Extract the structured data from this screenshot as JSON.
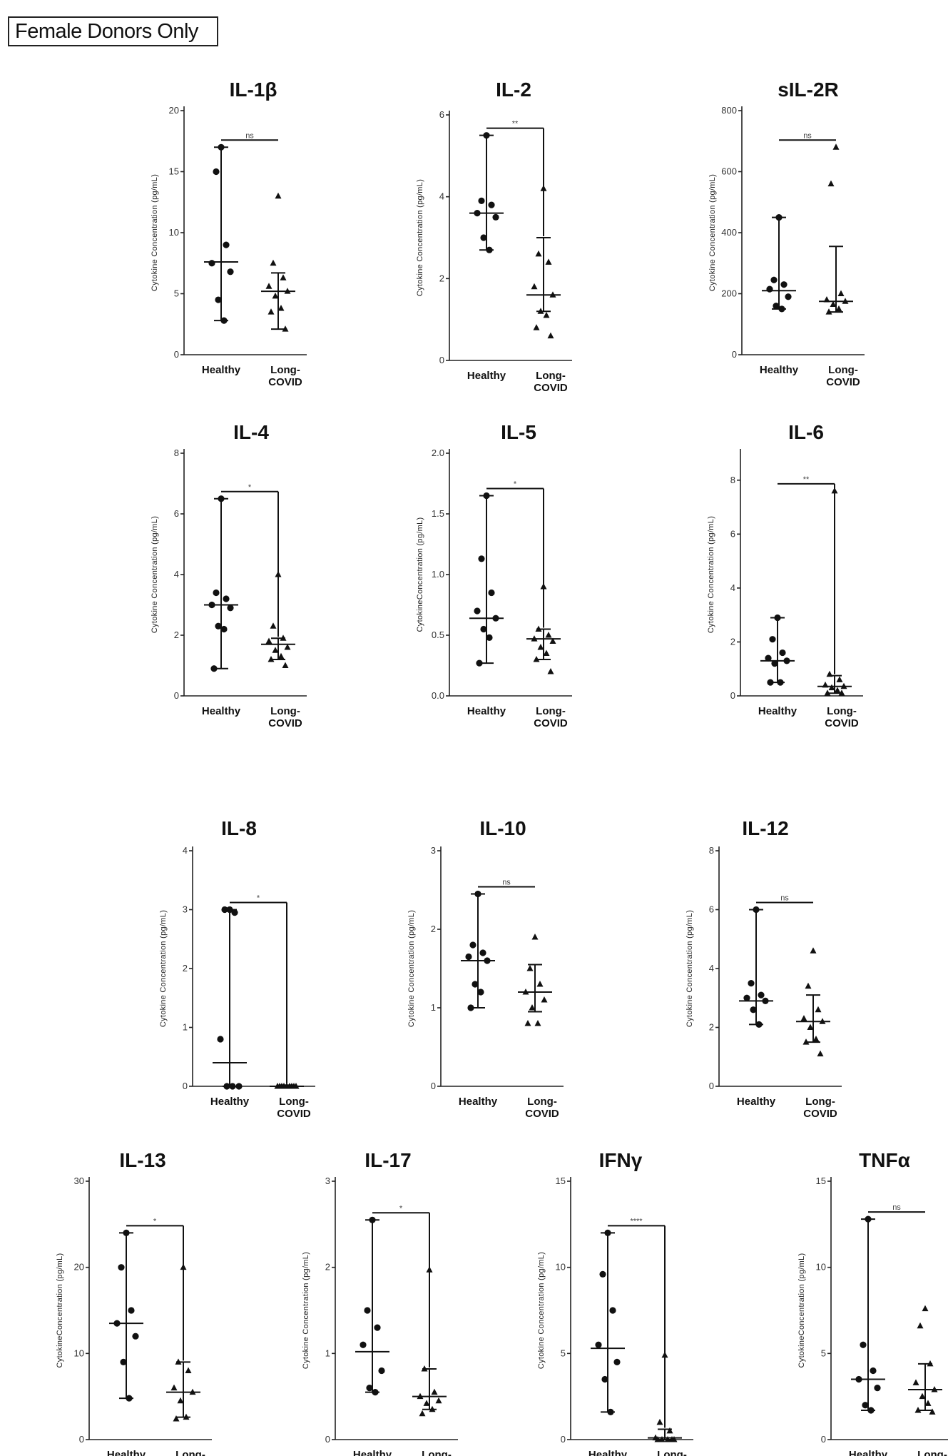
{
  "figure_label": "Female Donors Only",
  "chart_data": [
    {
      "type": "scatter",
      "title": "IL-1β",
      "ylabel": "Cytokine  Concentration  (pg/mL)",
      "ylim": [
        0,
        20
      ],
      "yticks": [
        "0",
        "5",
        "10",
        "15",
        "20"
      ],
      "categories": [
        "Healthy",
        "Long-\nCOVID"
      ],
      "significance": "ns",
      "series": [
        {
          "name": "Healthy",
          "median": 7.6,
          "ci": [
            2.8,
            17
          ],
          "values": [
            17,
            15,
            9,
            7.5,
            6.8,
            4.5,
            2.8
          ]
        },
        {
          "name": "Long-COVID",
          "median": 5.2,
          "ci": [
            2.1,
            6.7
          ],
          "values": [
            13,
            7.5,
            6.3,
            5.6,
            5.2,
            4.8,
            3.8,
            3.5,
            2.1
          ]
        }
      ]
    },
    {
      "type": "scatter",
      "title": "IL-2",
      "ylabel": "Cytokine  Concentration  (pg/mL)",
      "ylim": [
        0,
        6
      ],
      "yticks": [
        "0",
        "2",
        "4",
        "6"
      ],
      "categories": [
        "Healthy",
        "Long-\nCOVID"
      ],
      "significance": "**",
      "series": [
        {
          "name": "Healthy",
          "median": 3.6,
          "ci": [
            2.7,
            5.5
          ],
          "values": [
            5.5,
            3.9,
            3.8,
            3.6,
            3.5,
            3.0,
            2.7
          ]
        },
        {
          "name": "Long-COVID",
          "median": 1.6,
          "ci": [
            1.2,
            3.0
          ],
          "values": [
            4.2,
            2.6,
            2.4,
            1.8,
            1.6,
            1.2,
            1.1,
            0.8,
            0.6
          ]
        }
      ]
    },
    {
      "type": "scatter",
      "title": "sIL-2R",
      "ylabel": "Cytokine  Concentration  (pg/mL)",
      "ylim": [
        0,
        800
      ],
      "yticks": [
        "0",
        "200",
        "400",
        "600",
        "800"
      ],
      "categories": [
        "Healthy",
        "Long-\nCOVID"
      ],
      "significance": "ns",
      "series": [
        {
          "name": "Healthy",
          "median": 210,
          "ci": [
            150,
            450
          ],
          "values": [
            450,
            245,
            230,
            215,
            190,
            160,
            150
          ]
        },
        {
          "name": "Long-COVID",
          "median": 175,
          "ci": [
            140,
            355
          ],
          "values": [
            680,
            560,
            200,
            180,
            175,
            165,
            150,
            140
          ]
        }
      ]
    },
    {
      "type": "scatter",
      "title": "IL-4",
      "ylabel": "Cytokine  Concentration  (pg/mL)",
      "ylim": [
        0,
        8
      ],
      "yticks": [
        "0",
        "2",
        "4",
        "6",
        "8"
      ],
      "categories": [
        "Healthy",
        "Long-\nCOVID"
      ],
      "significance": "*",
      "series": [
        {
          "name": "Healthy",
          "median": 3.0,
          "ci": [
            0.9,
            6.5
          ],
          "values": [
            6.5,
            3.4,
            3.2,
            3.0,
            2.9,
            2.3,
            2.2,
            0.9
          ]
        },
        {
          "name": "Long-COVID",
          "median": 1.7,
          "ci": [
            1.2,
            1.9
          ],
          "values": [
            4.0,
            2.3,
            1.9,
            1.8,
            1.6,
            1.5,
            1.3,
            1.2,
            1.0
          ]
        }
      ]
    },
    {
      "type": "scatter",
      "title": "IL-5",
      "ylabel": "CytokineConcentration  (pg/mL)",
      "ylim": [
        0,
        2.0
      ],
      "yticks": [
        "0.0",
        "0.5",
        "1.0",
        "1.5",
        "2.0"
      ],
      "categories": [
        "Healthy",
        "Long-\nCOVID"
      ],
      "significance": "*",
      "series": [
        {
          "name": "Healthy",
          "median": 0.64,
          "ci": [
            0.27,
            1.65
          ],
          "values": [
            1.65,
            1.13,
            0.85,
            0.7,
            0.64,
            0.55,
            0.48,
            0.27
          ]
        },
        {
          "name": "Long-COVID",
          "median": 0.47,
          "ci": [
            0.3,
            0.55
          ],
          "values": [
            0.9,
            0.55,
            0.5,
            0.47,
            0.45,
            0.4,
            0.35,
            0.3,
            0.2
          ]
        }
      ]
    },
    {
      "type": "scatter",
      "title": "IL-6",
      "ylabel": "Cytokine  Concentration  (pg/mL)",
      "ylim": [
        0,
        9
      ],
      "yticks": [
        "0",
        "2",
        "4",
        "6",
        "8"
      ],
      "categories": [
        "Healthy",
        "Long-\nCOVID"
      ],
      "significance": "**",
      "series": [
        {
          "name": "Healthy",
          "median": 1.3,
          "ci": [
            0.5,
            2.9
          ],
          "values": [
            2.9,
            2.1,
            1.6,
            1.4,
            1.3,
            1.2,
            0.5,
            0.5
          ]
        },
        {
          "name": "Long-COVID",
          "median": 0.35,
          "ci": [
            0.1,
            0.75
          ],
          "values": [
            7.6,
            0.8,
            0.6,
            0.4,
            0.35,
            0.3,
            0.2,
            0.1,
            0.1
          ]
        }
      ]
    },
    {
      "type": "scatter",
      "title": "IL-8",
      "ylabel": "Cytokine  Concentration  (pg/mL)",
      "ylim": [
        0,
        4
      ],
      "yticks": [
        "0",
        "1",
        "2",
        "3",
        "4"
      ],
      "categories": [
        "Healthy",
        "Long-\nCOVID"
      ],
      "significance": "*",
      "series": [
        {
          "name": "Healthy",
          "median": 0.4,
          "ci": [
            0,
            3
          ],
          "values": [
            3.0,
            3.0,
            2.95,
            0.8,
            0,
            0,
            0
          ]
        },
        {
          "name": "Long-COVID",
          "median": 0,
          "ci": [
            0,
            0.02
          ],
          "values": [
            0,
            0,
            0,
            0,
            0,
            0,
            0,
            0,
            0
          ]
        }
      ]
    },
    {
      "type": "scatter",
      "title": "IL-10",
      "ylabel": "Cytokine  Concentration  (pg/mL)",
      "ylim": [
        0,
        3
      ],
      "yticks": [
        "0",
        "1",
        "2",
        "3"
      ],
      "categories": [
        "Healthy",
        "Long-\nCOVID"
      ],
      "significance": "ns",
      "series": [
        {
          "name": "Healthy",
          "median": 1.6,
          "ci": [
            1.0,
            2.45
          ],
          "values": [
            2.45,
            1.8,
            1.7,
            1.65,
            1.6,
            1.3,
            1.2,
            1.0
          ]
        },
        {
          "name": "Long-COVID",
          "median": 1.2,
          "ci": [
            0.95,
            1.55
          ],
          "values": [
            1.9,
            1.5,
            1.3,
            1.2,
            1.1,
            1.0,
            0.8,
            0.8
          ]
        }
      ]
    },
    {
      "type": "scatter",
      "title": "IL-12",
      "ylabel": "Cytokine  Concentration  (pg/mL)",
      "ylim": [
        0,
        8
      ],
      "yticks": [
        "0",
        "2",
        "4",
        "6",
        "8"
      ],
      "categories": [
        "Healthy",
        "Long-\nCOVID"
      ],
      "significance": "ns",
      "series": [
        {
          "name": "Healthy",
          "median": 2.9,
          "ci": [
            2.1,
            6.0
          ],
          "values": [
            6.0,
            3.5,
            3.1,
            3.0,
            2.9,
            2.6,
            2.1
          ]
        },
        {
          "name": "Long-COVID",
          "median": 2.2,
          "ci": [
            1.5,
            3.1
          ],
          "values": [
            4.6,
            3.4,
            2.6,
            2.3,
            2.2,
            2.0,
            1.6,
            1.5,
            1.1
          ]
        }
      ]
    },
    {
      "type": "scatter",
      "title": "IL-13",
      "ylabel": "CytokineConcentration  (pg/mL)",
      "ylim": [
        0,
        30
      ],
      "yticks": [
        "0",
        "10",
        "20",
        "30"
      ],
      "categories": [
        "Healthy",
        "Long-\nCOVID"
      ],
      "significance": "*",
      "series": [
        {
          "name": "Healthy",
          "median": 13.5,
          "ci": [
            4.8,
            24
          ],
          "values": [
            24,
            20,
            15,
            13.5,
            12,
            9,
            4.8
          ]
        },
        {
          "name": "Long-COVID",
          "median": 5.5,
          "ci": [
            2.6,
            9.0
          ],
          "values": [
            20,
            9,
            8,
            6,
            5.5,
            4.5,
            2.6,
            2.4
          ]
        }
      ]
    },
    {
      "type": "scatter",
      "title": "IL-17",
      "ylabel": "Cytokine  Concentration  (pg/mL)",
      "ylim": [
        0,
        3
      ],
      "yticks": [
        "0",
        "1",
        "2",
        "3"
      ],
      "categories": [
        "Healthy",
        "Long-\nCOVID"
      ],
      "significance": "*",
      "series": [
        {
          "name": "Healthy",
          "median": 1.02,
          "ci": [
            0.55,
            2.55
          ],
          "values": [
            2.55,
            1.5,
            1.3,
            1.1,
            0.8,
            0.6,
            0.55
          ]
        },
        {
          "name": "Long-COVID",
          "median": 0.5,
          "ci": [
            0.35,
            0.82
          ],
          "values": [
            1.97,
            0.82,
            0.55,
            0.5,
            0.45,
            0.42,
            0.35,
            0.3
          ]
        }
      ]
    },
    {
      "type": "scatter",
      "title": "IFNγ",
      "ylabel": "Cytokine  Concentration  (pg/mL)",
      "ylim": [
        0,
        15
      ],
      "yticks": [
        "0",
        "5",
        "10",
        "15"
      ],
      "categories": [
        "Healthy",
        "Long-\nCOVID"
      ],
      "significance": "****",
      "series": [
        {
          "name": "Healthy",
          "median": 5.3,
          "ci": [
            1.6,
            12
          ],
          "values": [
            12,
            9.6,
            7.5,
            5.5,
            4.5,
            3.5,
            1.6
          ]
        },
        {
          "name": "Long-COVID",
          "median": 0.1,
          "ci": [
            0,
            0.6
          ],
          "values": [
            4.9,
            1.0,
            0.5,
            0.1,
            0,
            0,
            0,
            0,
            0
          ]
        }
      ]
    },
    {
      "type": "scatter",
      "title": "TNFα",
      "ylabel": "CytokineConcentration  (pg/mL)",
      "ylim": [
        0,
        15
      ],
      "yticks": [
        "0",
        "5",
        "10",
        "15"
      ],
      "categories": [
        "Healthy",
        "Long-\nCOVID"
      ],
      "significance": "ns",
      "series": [
        {
          "name": "Healthy",
          "median": 3.5,
          "ci": [
            1.7,
            12.8
          ],
          "values": [
            12.8,
            5.5,
            4,
            3.5,
            3,
            2,
            1.7
          ]
        },
        {
          "name": "Long-COVID",
          "median": 2.9,
          "ci": [
            1.7,
            4.4
          ],
          "values": [
            7.6,
            6.6,
            4.4,
            3.3,
            2.9,
            2.5,
            2.1,
            1.7,
            1.6
          ]
        }
      ]
    }
  ]
}
